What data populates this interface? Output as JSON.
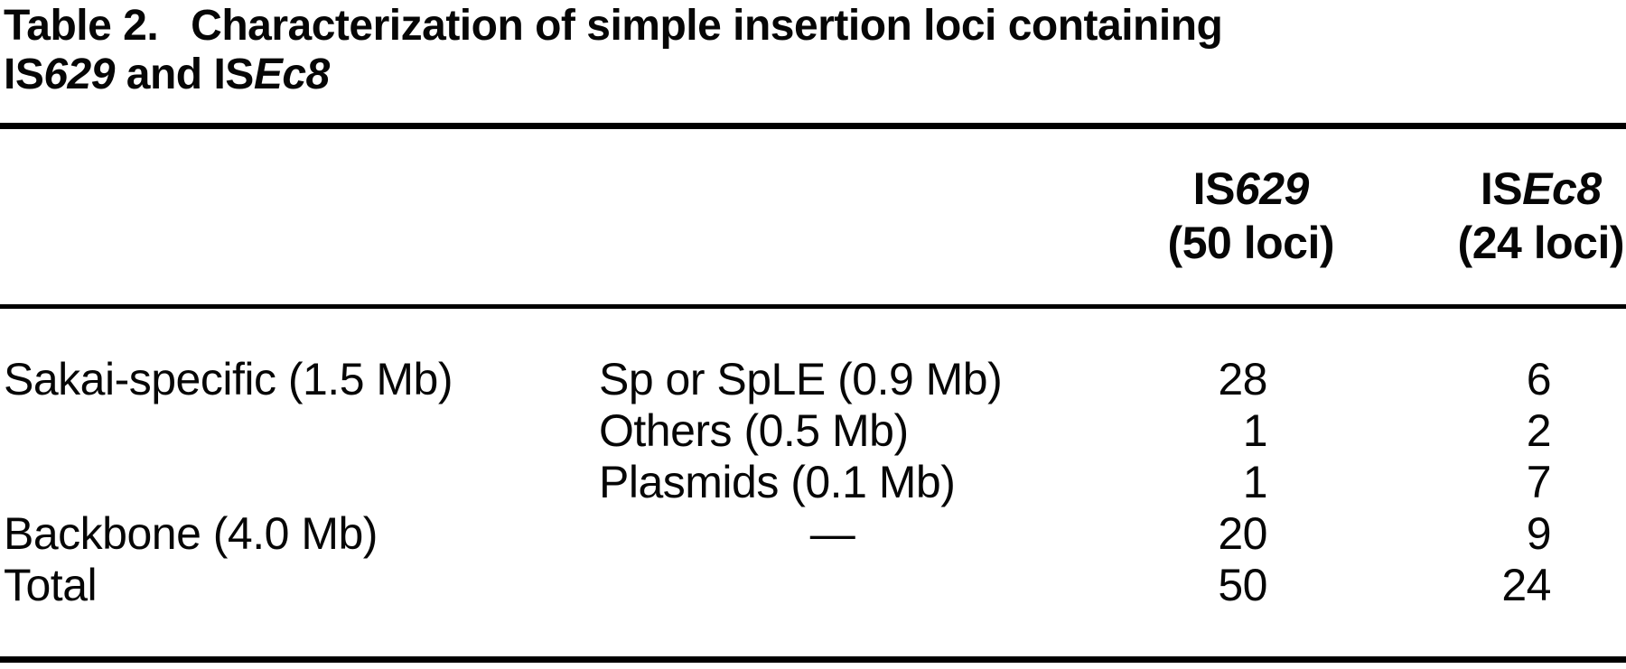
{
  "title": {
    "label": "Table 2.",
    "caption": "Characterization of simple insertion loci containing",
    "line2": {
      "p1": "IS",
      "p2": "629",
      "p3": " and IS",
      "p4": "Ec8"
    }
  },
  "table": {
    "header": {
      "is629": {
        "prefix": "IS",
        "italic": "629",
        "sub": "(50 loci)"
      },
      "isec8": {
        "prefix": "IS",
        "italic": "Ec8",
        "sub": "(24 loci)"
      }
    },
    "rows": [
      {
        "group": "Sakai-specific (1.5 Mb)",
        "sub": "Sp or SpLE (0.9 Mb)",
        "is629": "28",
        "isec8": "6"
      },
      {
        "group": "",
        "sub": "Others (0.5 Mb)",
        "is629": "1",
        "isec8": "2"
      },
      {
        "group": "",
        "sub": "Plasmids (0.1 Mb)",
        "is629": "1",
        "isec8": "7"
      },
      {
        "group": "Backbone (4.0 Mb)",
        "sub": "—",
        "is629": "20",
        "isec8": "9"
      },
      {
        "group": "Total",
        "sub": "",
        "is629": "50",
        "isec8": "24"
      }
    ]
  },
  "colors": {
    "text": "#060606",
    "background": "#ffffff",
    "rule": "#000000"
  }
}
